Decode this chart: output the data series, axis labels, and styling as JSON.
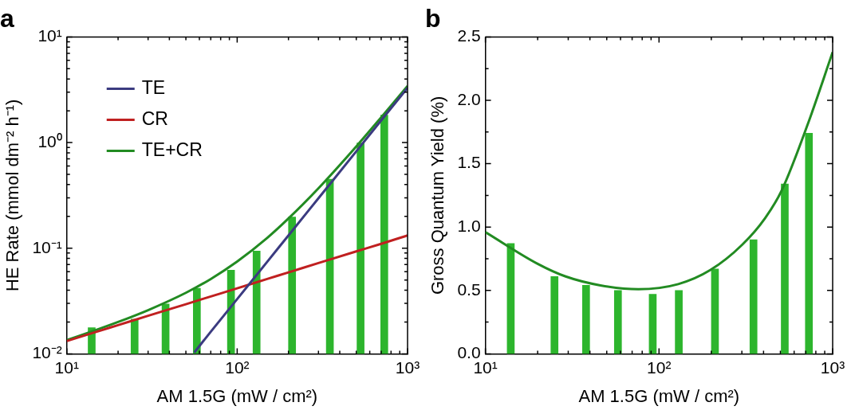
{
  "chart_data": [
    {
      "type": "bar",
      "title": "a",
      "xlabel": "AM 1.5G (mW / cm²)",
      "ylabel": "HE Rate (mmol dm⁻² h⁻¹)",
      "log": "xy",
      "legend": "top left",
      "xlim": [
        10,
        1000
      ],
      "ylim": [
        0.01,
        10
      ],
      "xticks": [
        {
          "value": 10,
          "label": "10¹"
        },
        {
          "value": 20,
          "label": null
        },
        {
          "value": 30,
          "label": null
        },
        {
          "value": 40,
          "label": null
        },
        {
          "value": 50,
          "label": null
        },
        {
          "value": 60,
          "label": null
        },
        {
          "value": 70,
          "label": null
        },
        {
          "value": 80,
          "label": null
        },
        {
          "value": 90,
          "label": null
        },
        {
          "value": 100,
          "label": "10²"
        },
        {
          "value": 200,
          "label": null
        },
        {
          "value": 300,
          "label": null
        },
        {
          "value": 400,
          "label": null
        },
        {
          "value": 500,
          "label": null
        },
        {
          "value": 600,
          "label": null
        },
        {
          "value": 700,
          "label": null
        },
        {
          "value": 800,
          "label": null
        },
        {
          "value": 900,
          "label": null
        },
        {
          "value": 1000,
          "label": "10³"
        }
      ],
      "yticks": [
        {
          "value": 0.01,
          "label": "10⁻²"
        },
        {
          "value": 0.02,
          "label": null
        },
        {
          "value": 0.03,
          "label": null
        },
        {
          "value": 0.04,
          "label": null
        },
        {
          "value": 0.05,
          "label": null
        },
        {
          "value": 0.06,
          "label": null
        },
        {
          "value": 0.07,
          "label": null
        },
        {
          "value": 0.08,
          "label": null
        },
        {
          "value": 0.09,
          "label": null
        },
        {
          "value": 0.1,
          "label": "10⁻¹"
        },
        {
          "value": 0.2,
          "label": null
        },
        {
          "value": 0.3,
          "label": null
        },
        {
          "value": 0.4,
          "label": null
        },
        {
          "value": 0.5,
          "label": null
        },
        {
          "value": 0.6,
          "label": null
        },
        {
          "value": 0.7,
          "label": null
        },
        {
          "value": 0.8,
          "label": null
        },
        {
          "value": 0.9,
          "label": null
        },
        {
          "value": 1,
          "label": "10⁰"
        },
        {
          "value": 2,
          "label": null
        },
        {
          "value": 3,
          "label": null
        },
        {
          "value": 4,
          "label": null
        },
        {
          "value": 5,
          "label": null
        },
        {
          "value": 6,
          "label": null
        },
        {
          "value": 7,
          "label": null
        },
        {
          "value": 8,
          "label": null
        },
        {
          "value": 9,
          "label": null
        },
        {
          "value": 10,
          "label": "10¹"
        }
      ],
      "series": [
        {
          "color": "#2db52d",
          "x": [
            14,
            25,
            38,
            58,
            92,
            130,
            210,
            350,
            530,
            730
          ],
          "values": [
            0.0177,
            0.0213,
            0.0296,
            0.0418,
            0.062,
            0.094,
            0.197,
            0.45,
            0.99,
            1.82
          ]
        },
        {
          "type": "line",
          "name": "TE",
          "color": "#3b3b80",
          "x": [
            56,
            70,
            100,
            150,
            200,
            300,
            500,
            700,
            1000
          ],
          "values": [
            0.0103,
            0.0162,
            0.033,
            0.0743,
            0.132,
            0.297,
            0.825,
            1.62,
            3.3
          ]
        },
        {
          "type": "line",
          "name": "CR",
          "color": "#c02020",
          "x": [
            10,
            15,
            20,
            30,
            50,
            70,
            100,
            150,
            200,
            300,
            500,
            700,
            1000
          ],
          "values": [
            0.0132,
            0.0162,
            0.0187,
            0.0229,
            0.0295,
            0.0349,
            0.0417,
            0.0511,
            0.059,
            0.0723,
            0.0933,
            0.11,
            0.132
          ]
        },
        {
          "type": "line",
          "name": "TE+CR",
          "color": "#228b22",
          "x": [
            10,
            15,
            20,
            30,
            50,
            70,
            100,
            150,
            200,
            300,
            500,
            700,
            1000
          ],
          "values": [
            0.0135,
            0.0169,
            0.02,
            0.0259,
            0.0378,
            0.0511,
            0.0747,
            0.125,
            0.191,
            0.369,
            0.918,
            1.73,
            3.43
          ]
        }
      ]
    },
    {
      "type": "bar",
      "title": "b",
      "xlabel": "AM 1.5G (mW / cm²)",
      "ylabel": "Gross Quantum Yield (%)",
      "log": "x",
      "legend": false,
      "xlim": [
        10,
        1000
      ],
      "ylim": [
        0,
        2.5
      ],
      "xticks": [
        {
          "value": 10,
          "label": "10¹"
        },
        {
          "value": 20,
          "label": null
        },
        {
          "value": 30,
          "label": null
        },
        {
          "value": 40,
          "label": null
        },
        {
          "value": 50,
          "label": null
        },
        {
          "value": 60,
          "label": null
        },
        {
          "value": 70,
          "label": null
        },
        {
          "value": 80,
          "label": null
        },
        {
          "value": 90,
          "label": null
        },
        {
          "value": 100,
          "label": "10²"
        },
        {
          "value": 200,
          "label": null
        },
        {
          "value": 300,
          "label": null
        },
        {
          "value": 400,
          "label": null
        },
        {
          "value": 500,
          "label": null
        },
        {
          "value": 600,
          "label": null
        },
        {
          "value": 700,
          "label": null
        },
        {
          "value": 800,
          "label": null
        },
        {
          "value": 900,
          "label": null
        },
        {
          "value": 1000,
          "label": "10³"
        }
      ],
      "yticks": [
        {
          "value": 0,
          "label": "0.0"
        },
        {
          "value": 0.25,
          "label": null
        },
        {
          "value": 0.5,
          "label": "0.5"
        },
        {
          "value": 0.75,
          "label": null
        },
        {
          "value": 1,
          "label": "1.0"
        },
        {
          "value": 1.25,
          "label": null
        },
        {
          "value": 1.5,
          "label": "1.5"
        },
        {
          "value": 1.75,
          "label": null
        },
        {
          "value": 2,
          "label": "2.0"
        },
        {
          "value": 2.25,
          "label": null
        },
        {
          "value": 2.5,
          "label": "2.5"
        }
      ],
      "series": [
        {
          "color": "#2db52d",
          "x": [
            14,
            25,
            38,
            58,
            92,
            130,
            210,
            350,
            530,
            730
          ],
          "values": [
            0.87,
            0.61,
            0.54,
            0.5,
            0.47,
            0.5,
            0.67,
            0.9,
            1.34,
            1.74
          ]
        },
        {
          "type": "line",
          "color": "#228b22",
          "x": [
            10,
            20,
            29,
            46,
            76,
            129,
            197,
            301,
            408,
            509,
            718,
            1000
          ],
          "values": [
            0.96,
            0.71,
            0.61,
            0.54,
            0.51,
            0.55,
            0.66,
            0.86,
            1.07,
            1.29,
            1.81,
            2.38
          ]
        }
      ]
    }
  ]
}
